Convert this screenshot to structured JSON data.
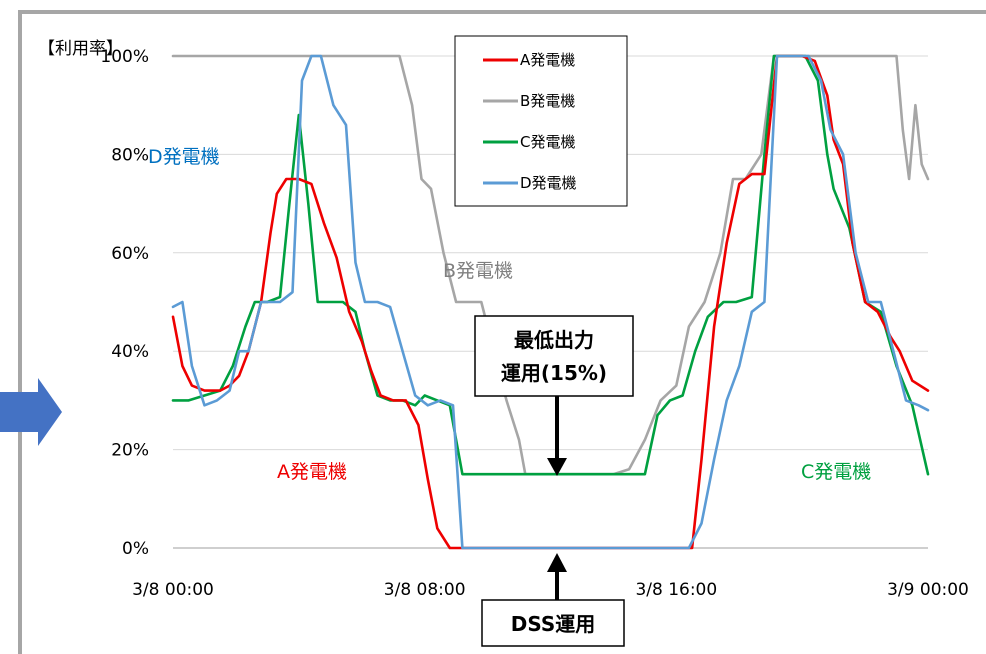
{
  "chart_data": {
    "type": "line",
    "ylabel": "【利用率】",
    "ylim": [
      0,
      100
    ],
    "yticks": [
      0,
      20,
      40,
      60,
      80,
      100
    ],
    "ytick_labels": [
      "0%",
      "20%",
      "40%",
      "60%",
      "80%",
      "100%"
    ],
    "xlim": [
      0,
      24
    ],
    "xticks": [
      0,
      8,
      16,
      24
    ],
    "xtick_labels": [
      "3/8 00:00",
      "3/8 08:00",
      "3/8 16:00",
      "3/9 00:00"
    ],
    "grid": true,
    "legend_position": "top-center",
    "series": [
      {
        "name": "A発電機",
        "color": "#ee0000",
        "x": [
          0,
          0.3,
          0.6,
          1.0,
          1.5,
          1.8,
          2.1,
          2.4,
          2.8,
          3.1,
          3.3,
          3.6,
          4.0,
          4.4,
          4.8,
          5.2,
          5.6,
          6.0,
          6.3,
          6.6,
          7.0,
          7.4,
          7.8,
          8.1,
          8.4,
          8.8,
          9.2,
          9.6,
          16.0,
          16.5,
          16.8,
          17.2,
          17.6,
          18.0,
          18.4,
          18.8,
          19.2,
          19.6,
          20.0,
          20.4,
          20.8,
          21.0,
          21.3,
          21.6,
          22.0,
          22.4,
          22.8,
          23.1,
          23.5,
          24
        ],
        "y": [
          47,
          37,
          33,
          32,
          32,
          33,
          35,
          40,
          50,
          64,
          72,
          75,
          75,
          74,
          66,
          59,
          48,
          42,
          36,
          31,
          30,
          30,
          25,
          14,
          4,
          0,
          0,
          0,
          0,
          0,
          18,
          45,
          62,
          74,
          76,
          76,
          100,
          100,
          100,
          99,
          92,
          83,
          78,
          62,
          50,
          48,
          43,
          40,
          34,
          32
        ]
      },
      {
        "name": "B発電機",
        "color": "#a6a6a6",
        "x": [
          0,
          2,
          4,
          6,
          7.2,
          7.6,
          7.9,
          8.2,
          8.6,
          9.0,
          9.3,
          9.8,
          10.2,
          10.6,
          11.0,
          11.2,
          14.0,
          14.5,
          15.0,
          15.5,
          16.0,
          16.4,
          16.9,
          17.4,
          17.8,
          18.2,
          18.7,
          19.1,
          19.6,
          20.2,
          21.0,
          22.0,
          23.0,
          23.2,
          23.4,
          23.6,
          23.8,
          24
        ],
        "y": [
          100,
          100,
          100,
          100,
          100,
          90,
          75,
          73,
          60,
          50,
          50,
          50,
          40,
          30,
          22,
          15,
          15,
          16,
          22,
          30,
          33,
          45,
          50,
          60,
          75,
          75,
          80,
          100,
          100,
          100,
          100,
          100,
          100,
          85,
          75,
          90,
          78,
          75
        ]
      },
      {
        "name": "C発電機",
        "color": "#00a040",
        "x": [
          0,
          0.5,
          1.0,
          1.5,
          1.9,
          2.3,
          2.6,
          3.0,
          3.4,
          3.7,
          4.0,
          4.3,
          4.6,
          5.0,
          5.4,
          5.8,
          6.1,
          6.5,
          6.9,
          7.3,
          7.7,
          8.0,
          8.4,
          8.8,
          9.2,
          9.6,
          12.0,
          14.0,
          15.0,
          15.4,
          15.8,
          16.2,
          16.6,
          17.0,
          17.5,
          17.9,
          18.4,
          18.8,
          19.1,
          19.6,
          20.1,
          20.5,
          20.8,
          21.0,
          21.5,
          22.0,
          22.5,
          23.0,
          23.5,
          24
        ],
        "y": [
          30,
          30,
          31,
          32,
          37,
          45,
          50,
          50,
          51,
          70,
          88,
          70,
          50,
          50,
          50,
          48,
          40,
          31,
          30,
          30,
          29,
          31,
          30,
          29,
          15,
          15,
          15,
          15,
          15,
          27,
          30,
          31,
          40,
          47,
          50,
          50,
          51,
          80,
          100,
          100,
          100,
          95,
          80,
          73,
          65,
          50,
          48,
          37,
          29,
          15
        ]
      },
      {
        "name": "D発電機",
        "color": "#5b9bd5",
        "x": [
          0,
          0.3,
          0.6,
          1.0,
          1.4,
          1.8,
          2.1,
          2.4,
          2.8,
          3.1,
          3.4,
          3.8,
          4.1,
          4.4,
          4.7,
          5.1,
          5.5,
          5.8,
          6.1,
          6.5,
          6.9,
          7.3,
          7.7,
          8.1,
          8.5,
          8.9,
          9.2,
          9.6,
          16.4,
          16.8,
          17.2,
          17.6,
          18.0,
          18.4,
          18.8,
          19.2,
          19.7,
          20.2,
          20.6,
          20.9,
          21.3,
          21.7,
          22.1,
          22.5,
          22.9,
          23.3,
          23.7,
          24
        ],
        "y": [
          49,
          50,
          37,
          29,
          30,
          32,
          40,
          40,
          50,
          50,
          50,
          52,
          95,
          100,
          100,
          90,
          86,
          58,
          50,
          50,
          49,
          40,
          31,
          29,
          30,
          29,
          0,
          0,
          0,
          5,
          18,
          30,
          37,
          48,
          50,
          100,
          100,
          100,
          95,
          85,
          80,
          60,
          50,
          50,
          40,
          30,
          29,
          28
        ]
      }
    ],
    "annotations": {
      "a_label": "A発電機",
      "b_label": "B発電機",
      "c_label": "C発電機",
      "d_label": "D発電機",
      "min_output_line1": "最低出力",
      "min_output_line2": "運用(15%)",
      "dss": "DSS運用"
    }
  }
}
